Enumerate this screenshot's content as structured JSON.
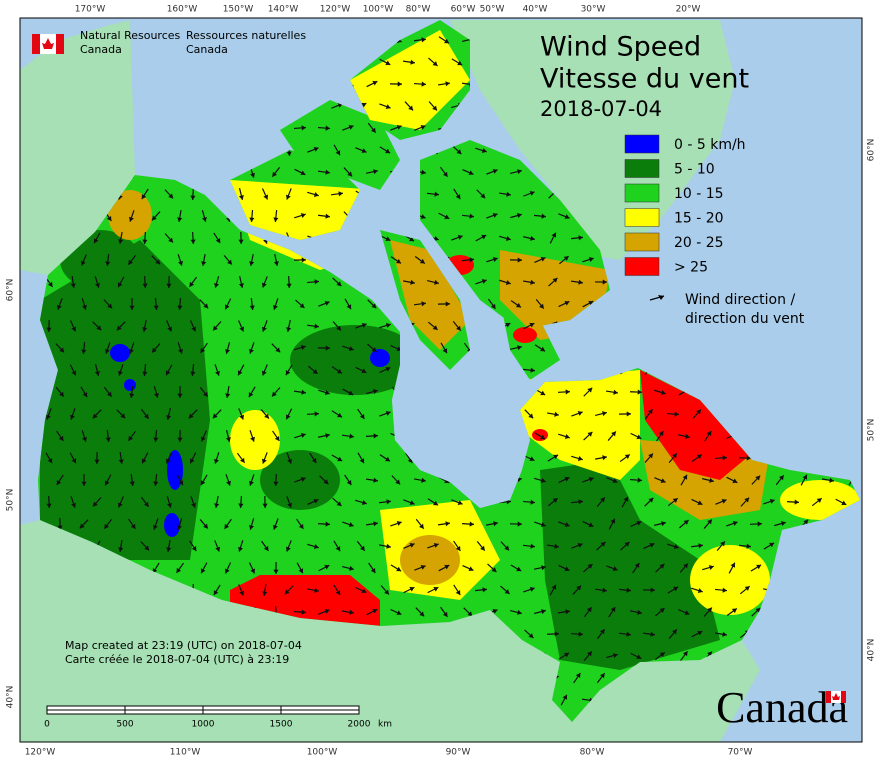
{
  "header": {
    "agency_en": [
      "Natural Resources",
      "Canada"
    ],
    "agency_fr": [
      "Ressources naturelles",
      "Canada"
    ]
  },
  "title": {
    "en": "Wind Speed",
    "fr": "Vitesse du vent",
    "date": "2018-07-04"
  },
  "legend": {
    "items": [
      {
        "label": "0 - 5 km/h",
        "color": "#0000ff"
      },
      {
        "label": "5 - 10",
        "color": "#0b7d0b"
      },
      {
        "label": "10 - 15",
        "color": "#1ed21e"
      },
      {
        "label": "15 - 20",
        "color": "#ffff00"
      },
      {
        "label": "20 - 25",
        "color": "#d6a400"
      },
      {
        "label": "> 25",
        "color": "#ff0000"
      }
    ],
    "arrow_label": [
      "Wind direction /",
      "direction du vent"
    ]
  },
  "graticule": {
    "top": [
      "170°W",
      "160°W",
      "150°W",
      "140°W",
      "120°W",
      "100°W",
      "80°W",
      "60°W",
      "50°W",
      "40°W",
      "30°W",
      "20°W"
    ],
    "bottom": [
      "120°W",
      "110°W",
      "100°W",
      "90°W",
      "80°W",
      "70°W"
    ],
    "left": [
      "60°N",
      "50°N",
      "40°N"
    ],
    "right": [
      "60°N",
      "50°N",
      "40°N"
    ]
  },
  "scale_bar": {
    "labels": [
      "0",
      "500",
      "1000",
      "1500",
      "2000"
    ],
    "unit": "km"
  },
  "footnote": [
    "Map created at 23:19 (UTC) on 2018-07-04",
    "Carte créée le 2018-07-04 (UTC) à 23:19"
  ],
  "wordmark": "Canada"
}
